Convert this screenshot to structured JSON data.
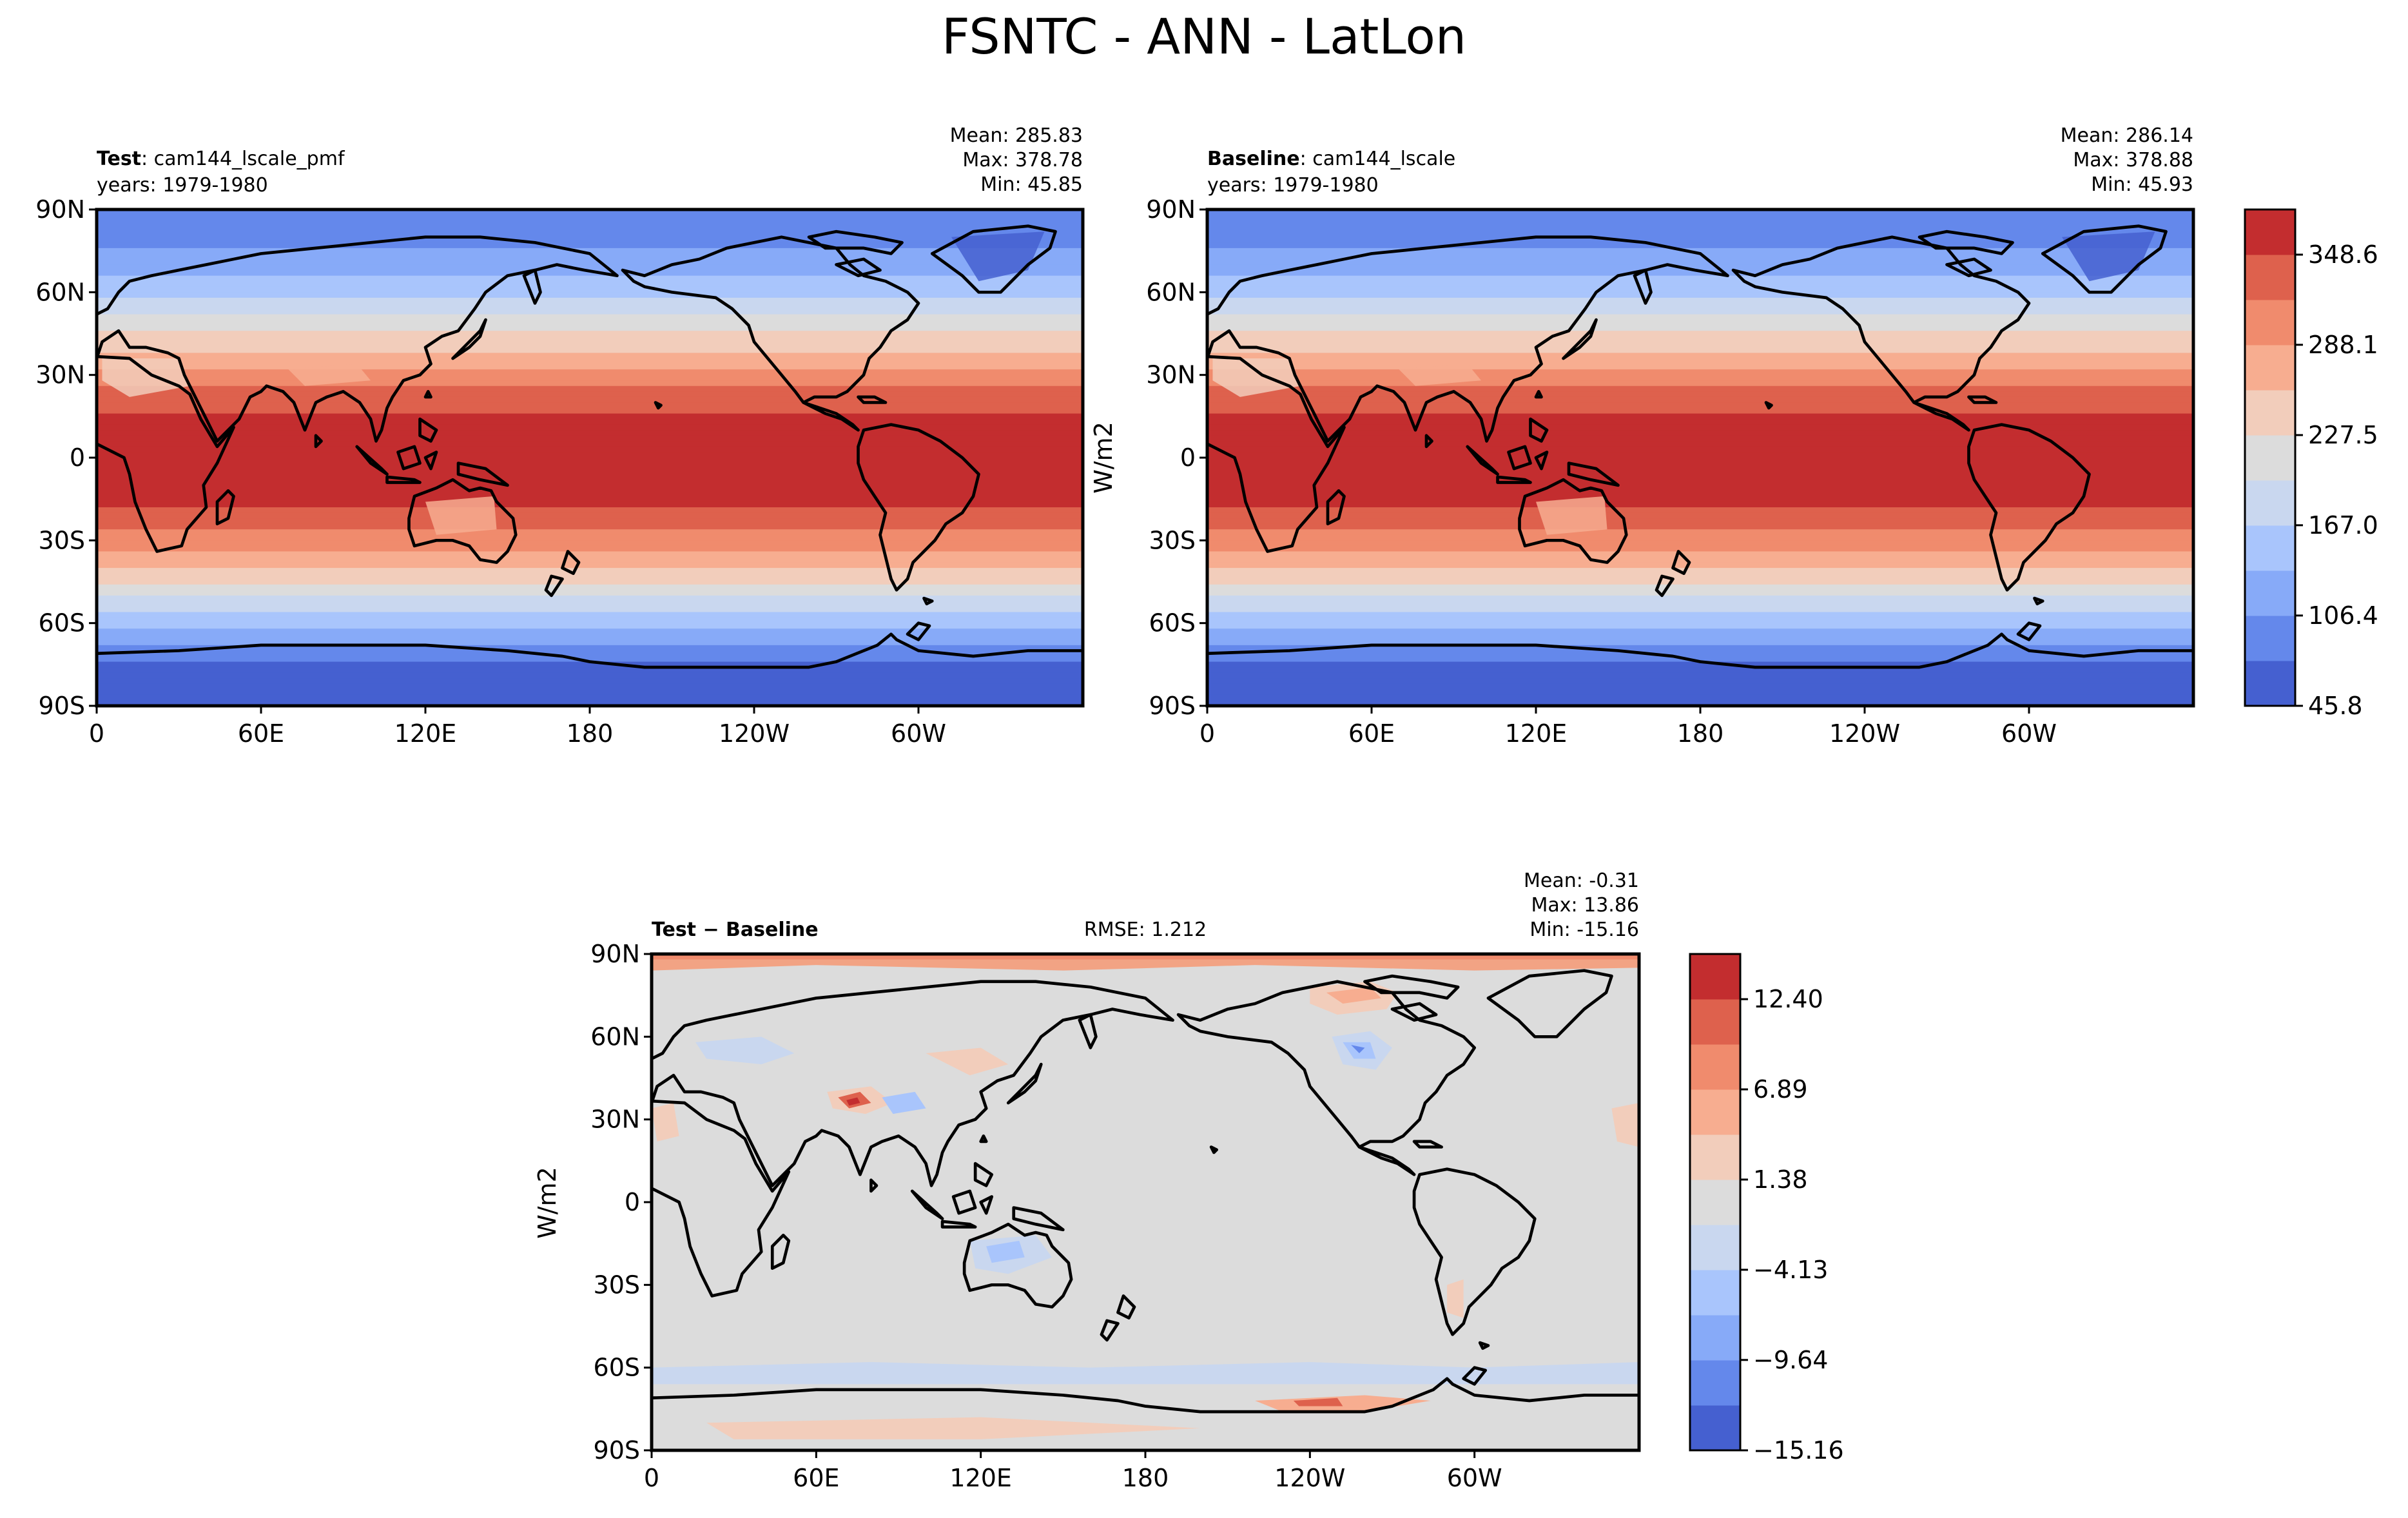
{
  "title": "FSNTC - ANN - LatLon",
  "lat_ticks": [
    "90N",
    "60N",
    "30N",
    "0",
    "30S",
    "60S",
    "90S"
  ],
  "lon_ticks": [
    "0",
    "60E",
    "120E",
    "180",
    "120W",
    "60W"
  ],
  "colors": {
    "mean_field_levels": [
      "#4560d0",
      "#6488eb",
      "#87aaf8",
      "#a9c5fc",
      "#c9d7ef",
      "#dcdcdc",
      "#f2cdbb",
      "#f7ad90",
      "#f08b6d",
      "#de614d",
      "#c32d2f"
    ],
    "diff_field_levels": [
      "#4560d0",
      "#6488eb",
      "#87aaf8",
      "#a9c5fc",
      "#c9d7ef",
      "#dcdcdc",
      "#f2cdbb",
      "#f7ad90",
      "#f08b6d",
      "#de614d",
      "#c32d2f"
    ],
    "coastline": "#000000"
  },
  "panels": {
    "test": {
      "label_bold": "Test",
      "label_rest": ": cam144_lscale_pmf",
      "years": "years: 1979-1980",
      "mean": "Mean: 285.83",
      "max": "Max: 378.78",
      "min": "Min: 45.85"
    },
    "baseline": {
      "label_bold": "Baseline",
      "label_rest": ": cam144_lscale",
      "years": "years: 1979-1980",
      "mean": "Mean: 286.14",
      "max": "Max: 378.88",
      "min": "Min: 45.93",
      "units": "W/m2"
    },
    "diff": {
      "label": "Test − Baseline",
      "rmse": "RMSE: 1.212",
      "mean": "Mean: -0.31",
      "max": "Max: 13.86",
      "min": "Min: -15.16",
      "units": "W/m2"
    }
  },
  "chart_data": [
    {
      "type": "heatmap",
      "name": "Test",
      "variable": "FSNTC",
      "units": "W/m2",
      "x_range": [
        0,
        360
      ],
      "y_range": [
        -90,
        90
      ],
      "zonal_mean_profile": {
        "lat": [
          90,
          80,
          70,
          60,
          50,
          40,
          30,
          20,
          10,
          0,
          -10,
          -20,
          -30,
          -40,
          -50,
          -60,
          -70,
          -80,
          -90
        ],
        "value": [
          75,
          90,
          125,
          160,
          205,
          250,
          300,
          340,
          360,
          365,
          362,
          345,
          305,
          255,
          200,
          150,
          90,
          60,
          50
        ]
      },
      "stats": {
        "mean": 285.83,
        "max": 378.78,
        "min": 45.85
      }
    },
    {
      "type": "heatmap",
      "name": "Baseline",
      "variable": "FSNTC",
      "units": "W/m2",
      "x_range": [
        0,
        360
      ],
      "y_range": [
        -90,
        90
      ],
      "zonal_mean_profile": {
        "lat": [
          90,
          80,
          70,
          60,
          50,
          40,
          30,
          20,
          10,
          0,
          -10,
          -20,
          -30,
          -40,
          -50,
          -60,
          -70,
          -80,
          -90
        ],
        "value": [
          75,
          90,
          125,
          160,
          205,
          250,
          300,
          340,
          360,
          365,
          362,
          345,
          305,
          255,
          200,
          150,
          90,
          60,
          50
        ]
      },
      "stats": {
        "mean": 286.14,
        "max": 378.88,
        "min": 45.93
      },
      "colorbar": {
        "ticks": [
          45.8,
          106.4,
          167.0,
          227.5,
          288.1,
          348.6
        ],
        "tick_labels": [
          "45.8",
          "106.4",
          "167.0",
          "227.5",
          "288.1",
          "348.6"
        ],
        "range": [
          45.8,
          378.9
        ],
        "n_levels": 11
      }
    },
    {
      "type": "heatmap",
      "name": "Test − Baseline",
      "variable": "FSNTC",
      "units": "W/m2",
      "x_range": [
        0,
        360
      ],
      "y_range": [
        -90,
        90
      ],
      "zonal_mean_profile": {
        "lat": [
          90,
          80,
          70,
          60,
          50,
          40,
          30,
          20,
          10,
          0,
          -10,
          -20,
          -30,
          -40,
          -50,
          -60,
          -70,
          -80,
          -90
        ],
        "value": [
          5,
          2,
          0,
          -1,
          -1,
          0,
          1,
          0,
          0,
          0,
          0,
          0,
          0,
          0,
          0,
          -2,
          2,
          0,
          0
        ]
      },
      "stats": {
        "mean": -0.31,
        "max": 13.86,
        "min": -15.16,
        "rmse": 1.212
      },
      "colorbar": {
        "ticks": [
          -15.16,
          -9.64,
          -4.13,
          1.38,
          6.89,
          12.4
        ],
        "tick_labels": [
          "−15.16",
          "−9.64",
          "−4.13",
          "1.38",
          "6.89",
          "12.40"
        ],
        "range": [
          -15.16,
          15.16
        ],
        "n_levels": 11
      }
    }
  ]
}
